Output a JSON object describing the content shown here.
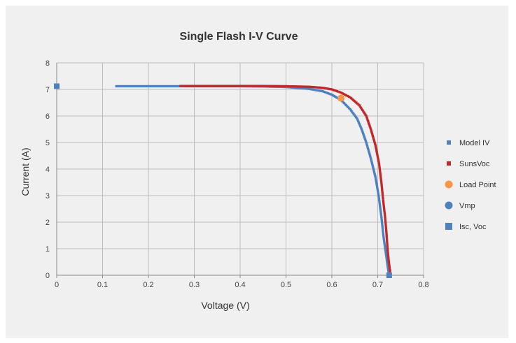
{
  "chart_data": {
    "type": "scatter",
    "title": "Single Flash I-V Curve",
    "xlabel": "Voltage (V)",
    "ylabel": "Current (A)",
    "xlim": [
      0,
      0.8
    ],
    "ylim": [
      0,
      8
    ],
    "x_ticks": [
      "0",
      "0.1",
      "0.2",
      "0.3",
      "0.4",
      "0.5",
      "0.6",
      "0.7",
      "0.8"
    ],
    "y_ticks": [
      "0",
      "1",
      "2",
      "3",
      "4",
      "5",
      "6",
      "7",
      "8"
    ],
    "grid": true,
    "legend_position": "right",
    "series": [
      {
        "name": "Model IV",
        "color": "#4f81bd",
        "marker": "small-square",
        "points": [
          [
            0.13,
            7.12
          ],
          [
            0.2,
            7.12
          ],
          [
            0.3,
            7.12
          ],
          [
            0.4,
            7.12
          ],
          [
            0.45,
            7.11
          ],
          [
            0.5,
            7.09
          ],
          [
            0.55,
            7.02
          ],
          [
            0.58,
            6.93
          ],
          [
            0.6,
            6.8
          ],
          [
            0.62,
            6.6
          ],
          [
            0.64,
            6.25
          ],
          [
            0.655,
            5.9
          ],
          [
            0.665,
            5.5
          ],
          [
            0.675,
            5.0
          ],
          [
            0.685,
            4.4
          ],
          [
            0.695,
            3.7
          ],
          [
            0.702,
            3.0
          ],
          [
            0.708,
            2.2
          ],
          [
            0.713,
            1.4
          ],
          [
            0.718,
            0.8
          ],
          [
            0.722,
            0.3
          ],
          [
            0.725,
            0.0
          ]
        ]
      },
      {
        "name": "SunsVoc",
        "color": "#c0292b",
        "marker": "small-square",
        "points": [
          [
            0.27,
            7.13
          ],
          [
            0.35,
            7.13
          ],
          [
            0.45,
            7.13
          ],
          [
            0.5,
            7.12
          ],
          [
            0.55,
            7.1
          ],
          [
            0.58,
            7.06
          ],
          [
            0.6,
            7.0
          ],
          [
            0.62,
            6.88
          ],
          [
            0.64,
            6.7
          ],
          [
            0.66,
            6.4
          ],
          [
            0.675,
            6.0
          ],
          [
            0.685,
            5.5
          ],
          [
            0.695,
            4.9
          ],
          [
            0.703,
            4.2
          ],
          [
            0.708,
            3.5
          ],
          [
            0.712,
            2.8
          ],
          [
            0.716,
            2.2
          ],
          [
            0.719,
            1.6
          ],
          [
            0.721,
            1.1
          ],
          [
            0.723,
            0.7
          ],
          [
            0.725,
            0.4
          ],
          [
            0.727,
            0.15
          ]
        ]
      },
      {
        "name": "Load Point",
        "color": "#f79646",
        "marker": "circle",
        "points": [
          [
            0.62,
            6.67
          ]
        ]
      },
      {
        "name": "Vmp",
        "color": "#4f81bd",
        "marker": "circle",
        "points": [
          [
            0.62,
            6.67
          ]
        ]
      },
      {
        "name": "Isc, Voc",
        "color": "#4f81bd",
        "marker": "square",
        "points": [
          [
            0.0,
            7.12
          ],
          [
            0.725,
            0.0
          ]
        ]
      }
    ]
  }
}
